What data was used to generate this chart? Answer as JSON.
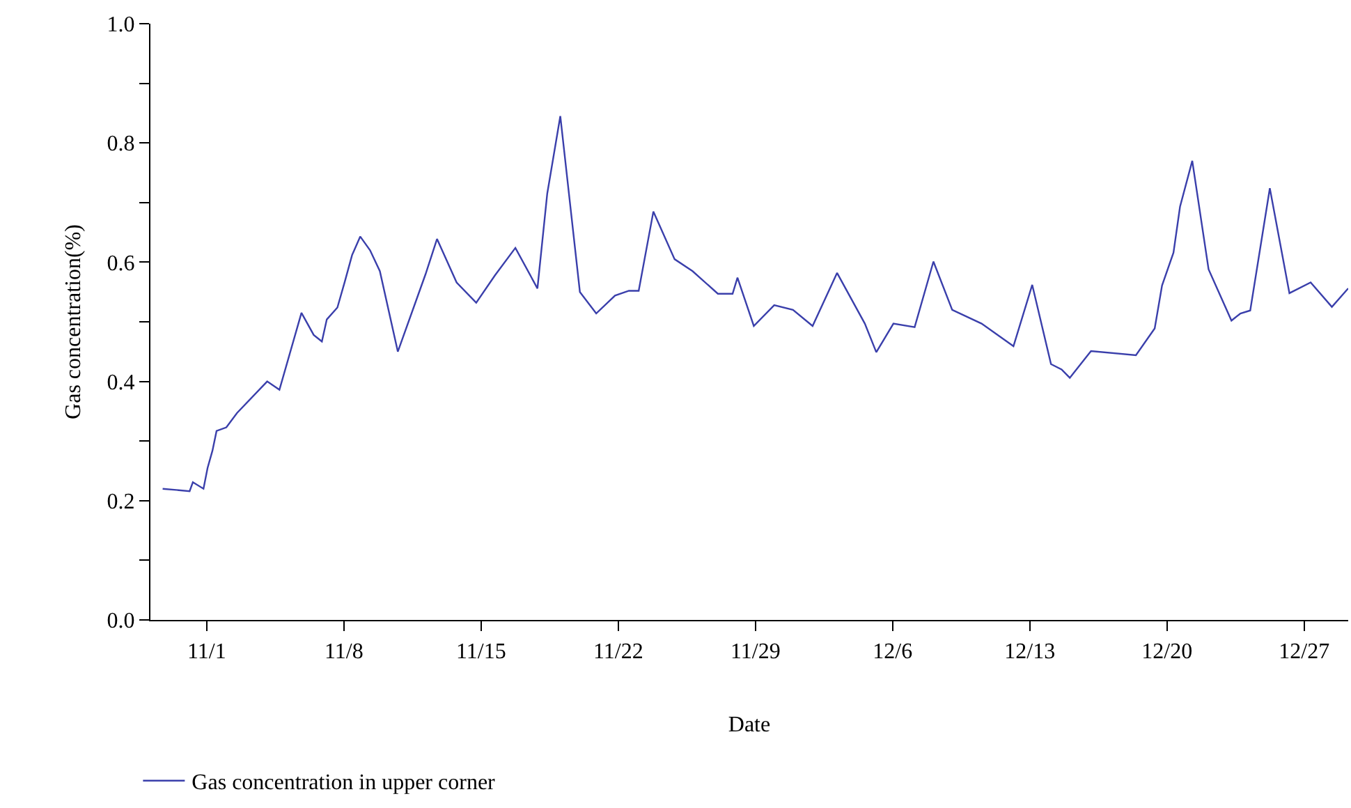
{
  "chart_data": {
    "type": "line",
    "xlabel": "Date",
    "ylabel": "Gas concentration(%)",
    "x": [
      "--10-29T18:00",
      "--10-31T03:00",
      "--10-31T07:00",
      "--10-31T20:00",
      "--11-01T01:00",
      "--11-01T07:00",
      "--11-01T12:00",
      "--11-02T00:00",
      "--11-02T13:00",
      "--11-04T02:00",
      "--11-04T17:00",
      "--11-05T20:00",
      "--11-06T11:00",
      "--11-06T21:00",
      "--11-07T03:00",
      "--11-07T16:00",
      "--11-08T01:00",
      "--11-08T10:00",
      "--11-08T20:00",
      "--11-09T08:00",
      "--11-09T20:00",
      "--11-10T18:00",
      "--11-12T04:00",
      "--11-12T18:00",
      "--11-13T18:00",
      "--11-14T18:00",
      "--11-15T17:00",
      "--11-16T18:00",
      "--11-17T21:00",
      "--11-18T09:00",
      "--11-19T01:00",
      "--11-20T01:00",
      "--11-20T21:00",
      "--11-21T20:00",
      "--11-22T13:00",
      "--11-23T01:00",
      "--11-23T19:00",
      "--11-24T21:00",
      "--11-25T19:00",
      "--11-27T02:00",
      "--11-27T20:00",
      "--11-28T02:00",
      "--11-28T22:00",
      "--11-29T23:00",
      "--11-30T22:00",
      "--12-01T22:00",
      "--12-03T04:00",
      "--12-04T14:00",
      "--12-05T04:00",
      "--12-06T01:00",
      "--12-07T03:00",
      "--12-08T02:00",
      "--12-09T01:00",
      "--12-10T13:00",
      "--12-12T04:00",
      "--12-13T03:00",
      "--12-14T02:00",
      "--12-14T15:00",
      "--12-15T01:00",
      "--12-16T03:00",
      "--12-18T10:00",
      "--12-19T09:00",
      "--12-19T18:00",
      "--12-20T08:00",
      "--12-20T16:00",
      "--12-21T07:00",
      "--12-22T03:00",
      "--12-23T07:00",
      "--12-23T18:00",
      "--12-24T06:00",
      "--12-25T06:00",
      "--12-26T06:00",
      "--12-27T08:00",
      "--12-28T10:00",
      "--12-29T06:00"
    ],
    "series": [
      {
        "name": "Gas concentration in upper corner",
        "color": "#3a3fab",
        "values": [
          0.22,
          0.216,
          0.231,
          0.22,
          0.255,
          0.284,
          0.317,
          0.323,
          0.347,
          0.4,
          0.386,
          0.515,
          0.478,
          0.467,
          0.504,
          0.524,
          0.567,
          0.612,
          0.643,
          0.62,
          0.585,
          0.45,
          0.58,
          0.639,
          0.566,
          0.532,
          0.578,
          0.624,
          0.556,
          0.715,
          0.845,
          0.55,
          0.514,
          0.544,
          0.552,
          0.552,
          0.685,
          0.605,
          0.585,
          0.547,
          0.547,
          0.574,
          0.493,
          0.528,
          0.52,
          0.493,
          0.582,
          0.497,
          0.449,
          0.497,
          0.491,
          0.601,
          0.52,
          0.497,
          0.459,
          0.562,
          0.429,
          0.42,
          0.406,
          0.451,
          0.444,
          0.489,
          0.561,
          0.616,
          0.693,
          0.77,
          0.588,
          0.502,
          0.514,
          0.519,
          0.724,
          0.548,
          0.566,
          0.525,
          0.556
        ]
      }
    ],
    "xlim": [
      "--10-29T03:00",
      "--12-29T06:00"
    ],
    "xticks": [
      {
        "value": "--11-01",
        "label": "11/1"
      },
      {
        "value": "--11-08",
        "label": "11/8"
      },
      {
        "value": "--11-15",
        "label": "11/15"
      },
      {
        "value": "--11-22",
        "label": "11/22"
      },
      {
        "value": "--11-29",
        "label": "11/29"
      },
      {
        "value": "--12-06",
        "label": "12/6"
      },
      {
        "value": "--12-13",
        "label": "12/13"
      },
      {
        "value": "--12-20",
        "label": "12/20"
      },
      {
        "value": "--12-27",
        "label": "12/27"
      }
    ],
    "ylim": [
      0,
      1
    ],
    "yticks": [
      {
        "value": 0,
        "label": "0.0"
      },
      {
        "value": 0.1,
        "label": null
      },
      {
        "value": 0.2,
        "label": "0.2"
      },
      {
        "value": 0.3,
        "label": null
      },
      {
        "value": 0.4,
        "label": "0.4"
      },
      {
        "value": 0.5,
        "label": null
      },
      {
        "value": 0.6,
        "label": "0.6"
      },
      {
        "value": 0.7,
        "label": null
      },
      {
        "value": 0.8,
        "label": "0.8"
      },
      {
        "value": 0.9,
        "label": null
      },
      {
        "value": 1,
        "label": "1.0"
      }
    ],
    "grid": false,
    "legend": "bottom left",
    "marker": "none",
    "line_style": "solid"
  }
}
